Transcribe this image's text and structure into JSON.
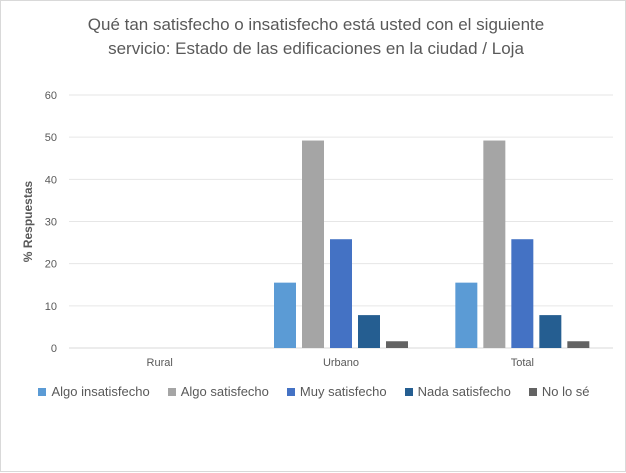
{
  "chart_data": {
    "type": "bar",
    "title": "Qué tan satisfecho o insatisfecho está usted con el siguiente servicio: Estado de las edificaciones en la ciudad / Loja",
    "xlabel": "",
    "ylabel": "% Respuestas",
    "ylim": [
      0,
      60
    ],
    "yticks": [
      "0",
      "10",
      "20",
      "30",
      "40",
      "50",
      "60"
    ],
    "grid": true,
    "legend_position": "bottom",
    "categories": [
      "Rural",
      "Urbano",
      "Total"
    ],
    "series": [
      {
        "name": "Algo insatisfecho",
        "color": "#5b9bd5",
        "values": [
          0,
          15.5,
          15.5
        ]
      },
      {
        "name": "Algo satisfecho",
        "color": "#a5a5a5",
        "values": [
          0,
          49.2,
          49.2
        ]
      },
      {
        "name": "Muy satisfecho",
        "color": "#4472c4",
        "values": [
          0,
          25.8,
          25.8
        ]
      },
      {
        "name": "Nada satisfecho",
        "color": "#255e91",
        "values": [
          0,
          7.8,
          7.8
        ]
      },
      {
        "name": "No lo sé",
        "color": "#636363",
        "values": [
          0,
          1.6,
          1.6
        ]
      }
    ]
  }
}
